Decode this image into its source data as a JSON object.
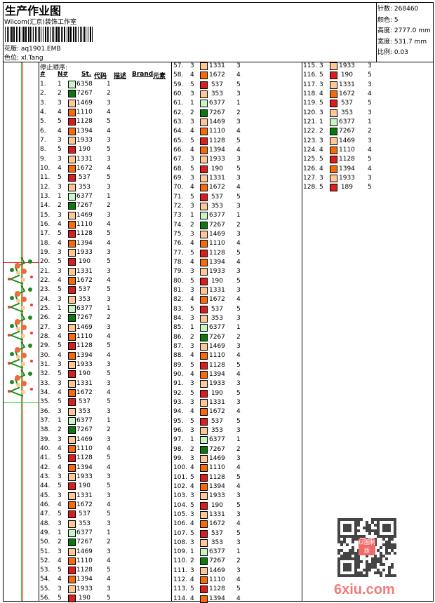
{
  "header": {
    "title": "生产作业图",
    "company": "Wilcom(汇京)装饰工作室",
    "design_label": "花版:",
    "design_value": "aq1901.EMB",
    "colorway_label": "色位:",
    "colorway_value": "xl.Tang"
  },
  "stats": [
    {
      "label": "针数:",
      "value": "268460"
    },
    {
      "label": "颜色:",
      "value": "5"
    },
    {
      "label": "高度:",
      "value": "2777.0 mm"
    },
    {
      "label": "宽度:",
      "value": "531.7 mm"
    },
    {
      "label": "比例:",
      "value": "0.03"
    }
  ],
  "table": {
    "stop_sequence_label": "停止顺序:",
    "columns": [
      "#",
      "N#",
      "St.",
      "代码",
      "描述",
      "Brand",
      "元素"
    ],
    "colors": {
      "1": "#c8f5c8",
      "2": "#0a7a0a",
      "3": "#fcc898",
      "4": "#f56a0a",
      "5": "#d81e1e"
    },
    "rows": [
      [
        "1.",
        "1",
        "6358",
        "1"
      ],
      [
        "2.",
        "2",
        "7267",
        "2"
      ],
      [
        "3.",
        "3",
        "1469",
        "3"
      ],
      [
        "4.",
        "4",
        "1110",
        "4"
      ],
      [
        "5.",
        "5",
        "1128",
        "5"
      ],
      [
        "6.",
        "4",
        "1394",
        "4"
      ],
      [
        "7.",
        "3",
        "1933",
        "3"
      ],
      [
        "8.",
        "5",
        "190",
        "5"
      ],
      [
        "9.",
        "3",
        "1331",
        "3"
      ],
      [
        "10.",
        "4",
        "1672",
        "4"
      ],
      [
        "11.",
        "5",
        "537",
        "5"
      ],
      [
        "12.",
        "3",
        "353",
        "3"
      ],
      [
        "13.",
        "1",
        "6377",
        "1"
      ],
      [
        "14.",
        "2",
        "7267",
        "2"
      ],
      [
        "15.",
        "3",
        "1469",
        "3"
      ],
      [
        "16.",
        "4",
        "1110",
        "4"
      ],
      [
        "17.",
        "5",
        "1128",
        "5"
      ],
      [
        "18.",
        "4",
        "1394",
        "4"
      ],
      [
        "19.",
        "3",
        "1933",
        "3"
      ],
      [
        "20.",
        "5",
        "190",
        "5"
      ],
      [
        "21.",
        "3",
        "1331",
        "3"
      ],
      [
        "22.",
        "4",
        "1672",
        "4"
      ],
      [
        "23.",
        "5",
        "537",
        "5"
      ],
      [
        "24.",
        "3",
        "353",
        "3"
      ],
      [
        "25.",
        "1",
        "6377",
        "1"
      ],
      [
        "26.",
        "2",
        "7267",
        "2"
      ],
      [
        "27.",
        "3",
        "1469",
        "3"
      ],
      [
        "28.",
        "4",
        "1110",
        "4"
      ],
      [
        "29.",
        "5",
        "1128",
        "5"
      ],
      [
        "30.",
        "4",
        "1394",
        "4"
      ],
      [
        "31.",
        "3",
        "1933",
        "3"
      ],
      [
        "32.",
        "5",
        "190",
        "5"
      ],
      [
        "33.",
        "3",
        "1331",
        "3"
      ],
      [
        "34.",
        "4",
        "1672",
        "4"
      ],
      [
        "35.",
        "5",
        "537",
        "5"
      ],
      [
        "36.",
        "3",
        "353",
        "3"
      ],
      [
        "37.",
        "1",
        "6377",
        "1"
      ],
      [
        "38.",
        "2",
        "7267",
        "2"
      ],
      [
        "39.",
        "3",
        "1469",
        "3"
      ],
      [
        "40.",
        "4",
        "1110",
        "4"
      ],
      [
        "41.",
        "5",
        "1128",
        "5"
      ],
      [
        "42.",
        "4",
        "1394",
        "4"
      ],
      [
        "43.",
        "3",
        "1933",
        "3"
      ],
      [
        "44.",
        "5",
        "190",
        "5"
      ],
      [
        "45.",
        "3",
        "1331",
        "3"
      ],
      [
        "46.",
        "4",
        "1672",
        "4"
      ],
      [
        "47.",
        "5",
        "537",
        "5"
      ],
      [
        "48.",
        "3",
        "353",
        "3"
      ],
      [
        "49.",
        "1",
        "6377",
        "1"
      ],
      [
        "50.",
        "2",
        "7267",
        "2"
      ],
      [
        "51.",
        "3",
        "1469",
        "3"
      ],
      [
        "52.",
        "4",
        "1110",
        "4"
      ],
      [
        "53.",
        "5",
        "1128",
        "5"
      ],
      [
        "54.",
        "4",
        "1394",
        "4"
      ],
      [
        "55.",
        "3",
        "1933",
        "3"
      ],
      [
        "56.",
        "5",
        "190",
        "5"
      ],
      [
        "57.",
        "3",
        "1331",
        "3"
      ],
      [
        "58.",
        "4",
        "1672",
        "4"
      ],
      [
        "59.",
        "5",
        "537",
        "5"
      ],
      [
        "60.",
        "3",
        "353",
        "3"
      ],
      [
        "61.",
        "1",
        "6377",
        "1"
      ],
      [
        "62.",
        "2",
        "7267",
        "2"
      ],
      [
        "63.",
        "3",
        "1469",
        "3"
      ],
      [
        "64.",
        "4",
        "1110",
        "4"
      ],
      [
        "65.",
        "5",
        "1128",
        "5"
      ],
      [
        "66.",
        "4",
        "1394",
        "4"
      ],
      [
        "67.",
        "3",
        "1933",
        "3"
      ],
      [
        "68.",
        "5",
        "190",
        "5"
      ],
      [
        "69.",
        "3",
        "1331",
        "3"
      ],
      [
        "70.",
        "4",
        "1672",
        "4"
      ],
      [
        "71.",
        "5",
        "537",
        "5"
      ],
      [
        "72.",
        "3",
        "353",
        "3"
      ],
      [
        "73.",
        "1",
        "6377",
        "1"
      ],
      [
        "74.",
        "2",
        "7267",
        "2"
      ],
      [
        "75.",
        "3",
        "1469",
        "3"
      ],
      [
        "76.",
        "4",
        "1110",
        "4"
      ],
      [
        "77.",
        "5",
        "1128",
        "5"
      ],
      [
        "78.",
        "4",
        "1394",
        "4"
      ],
      [
        "79.",
        "3",
        "1933",
        "3"
      ],
      [
        "80.",
        "5",
        "190",
        "5"
      ],
      [
        "81.",
        "3",
        "1331",
        "3"
      ],
      [
        "82.",
        "4",
        "1672",
        "4"
      ],
      [
        "83.",
        "5",
        "537",
        "5"
      ],
      [
        "84.",
        "3",
        "353",
        "3"
      ],
      [
        "85.",
        "1",
        "6377",
        "1"
      ],
      [
        "86.",
        "2",
        "7267",
        "2"
      ],
      [
        "87.",
        "3",
        "1469",
        "3"
      ],
      [
        "88.",
        "4",
        "1110",
        "4"
      ],
      [
        "89.",
        "5",
        "1128",
        "5"
      ],
      [
        "90.",
        "4",
        "1394",
        "4"
      ],
      [
        "91.",
        "3",
        "1933",
        "3"
      ],
      [
        "92.",
        "5",
        "190",
        "5"
      ],
      [
        "93.",
        "3",
        "1331",
        "3"
      ],
      [
        "94.",
        "4",
        "1672",
        "4"
      ],
      [
        "95.",
        "5",
        "537",
        "5"
      ],
      [
        "96.",
        "3",
        "353",
        "3"
      ],
      [
        "97.",
        "1",
        "6377",
        "1"
      ],
      [
        "98.",
        "2",
        "7267",
        "2"
      ],
      [
        "99.",
        "3",
        "1469",
        "3"
      ],
      [
        "100.",
        "4",
        "1110",
        "4"
      ],
      [
        "101.",
        "5",
        "1128",
        "5"
      ],
      [
        "102.",
        "4",
        "1394",
        "4"
      ],
      [
        "103.",
        "3",
        "1933",
        "3"
      ],
      [
        "104.",
        "5",
        "190",
        "5"
      ],
      [
        "105.",
        "3",
        "1331",
        "3"
      ],
      [
        "106.",
        "4",
        "1672",
        "4"
      ],
      [
        "107.",
        "5",
        "537",
        "5"
      ],
      [
        "108.",
        "3",
        "353",
        "3"
      ],
      [
        "109.",
        "1",
        "6377",
        "1"
      ],
      [
        "110.",
        "2",
        "7267",
        "2"
      ],
      [
        "111.",
        "3",
        "1469",
        "3"
      ],
      [
        "112.",
        "4",
        "1110",
        "4"
      ],
      [
        "113.",
        "5",
        "1128",
        "5"
      ],
      [
        "114.",
        "4",
        "1394",
        "4"
      ],
      [
        "115.",
        "3",
        "1933",
        "3"
      ],
      [
        "116.",
        "5",
        "190",
        "5"
      ],
      [
        "117.",
        "3",
        "1331",
        "3"
      ],
      [
        "118.",
        "4",
        "1672",
        "4"
      ],
      [
        "119.",
        "5",
        "537",
        "5"
      ],
      [
        "120.",
        "3",
        "353",
        "3"
      ],
      [
        "121.",
        "1",
        "6377",
        "1"
      ],
      [
        "122.",
        "2",
        "7267",
        "2"
      ],
      [
        "123.",
        "3",
        "1469",
        "3"
      ],
      [
        "124.",
        "4",
        "1110",
        "4"
      ],
      [
        "125.",
        "5",
        "1128",
        "5"
      ],
      [
        "126.",
        "4",
        "1394",
        "4"
      ],
      [
        "127.",
        "3",
        "1933",
        "3"
      ],
      [
        "128.",
        "5",
        "189",
        "5"
      ]
    ]
  },
  "watermark": {
    "site": "6xiu.com",
    "stamp": "以图制版"
  }
}
